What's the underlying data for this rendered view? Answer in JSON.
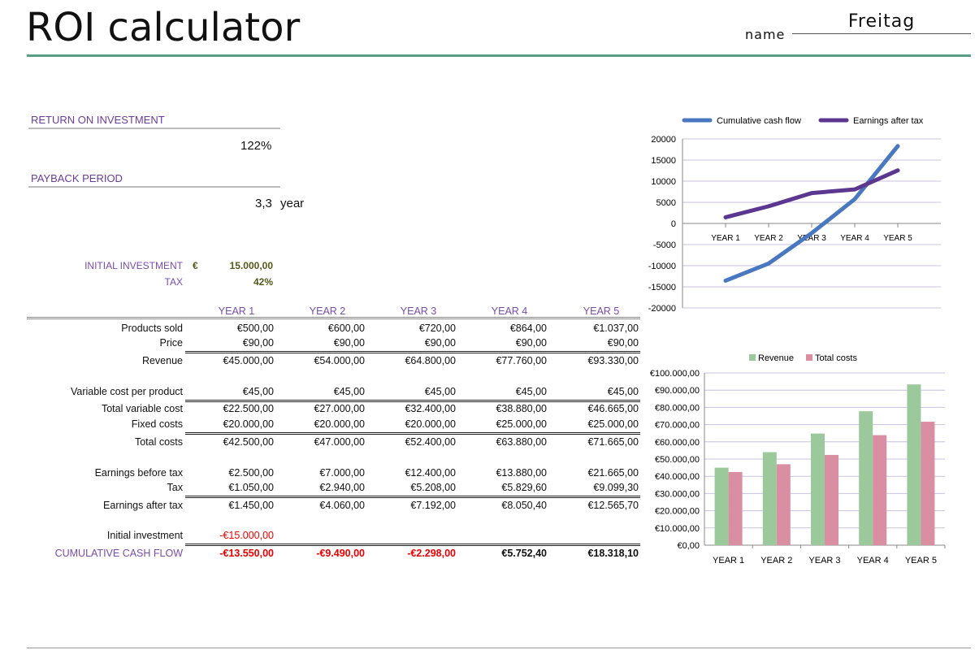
{
  "header": {
    "title": "ROI calculator",
    "name_label": "name",
    "name_value": "Freitag"
  },
  "summary": {
    "roi_label": "RETURN ON INVESTMENT",
    "roi_value": "122%",
    "payback_label": "PAYBACK PERIOD",
    "payback_value": "3,3",
    "payback_unit": "year"
  },
  "inputs": {
    "initial_investment_label": "INITIAL INVESTMENT",
    "currency": "€",
    "initial_investment_value": "15.000,00",
    "tax_label": "TAX",
    "tax_value": "42%"
  },
  "table": {
    "years": [
      "YEAR 1",
      "YEAR 2",
      "YEAR 3",
      "YEAR 4",
      "YEAR 5"
    ],
    "rows": [
      {
        "label": "Products sold",
        "values": [
          "€500,00",
          "€600,00",
          "€720,00",
          "€864,00",
          "€1.037,00"
        ]
      },
      {
        "label": "Price",
        "values": [
          "€90,00",
          "€90,00",
          "€90,00",
          "€90,00",
          "€90,00"
        ]
      },
      {
        "label": "Revenue",
        "values": [
          "€45.000,00",
          "€54.000,00",
          "€64.800,00",
          "€77.760,00",
          "€93.330,00"
        ]
      },
      {
        "label": "Variable cost per product",
        "values": [
          "€45,00",
          "€45,00",
          "€45,00",
          "€45,00",
          "€45,00"
        ]
      },
      {
        "label": "Total variable cost",
        "values": [
          "€22.500,00",
          "€27.000,00",
          "€32.400,00",
          "€38.880,00",
          "€46.665,00"
        ]
      },
      {
        "label": "Fixed costs",
        "values": [
          "€20.000,00",
          "€20.000,00",
          "€20.000,00",
          "€25.000,00",
          "€25.000,00"
        ]
      },
      {
        "label": "Total costs",
        "values": [
          "€42.500,00",
          "€47.000,00",
          "€52.400,00",
          "€63.880,00",
          "€71.665,00"
        ]
      },
      {
        "label": "Earnings before tax",
        "values": [
          "€2.500,00",
          "€7.000,00",
          "€12.400,00",
          "€13.880,00",
          "€21.665,00"
        ]
      },
      {
        "label": "Tax",
        "values": [
          "€1.050,00",
          "€2.940,00",
          "€5.208,00",
          "€5.829,60",
          "€9.099,30"
        ]
      },
      {
        "label": "Earnings after tax",
        "values": [
          "€1.450,00",
          "€4.060,00",
          "€7.192,00",
          "€8.050,40",
          "€12.565,70"
        ]
      },
      {
        "label": "Initial investment",
        "values": [
          "-€15.000,00",
          "",
          "",
          "",
          ""
        ]
      },
      {
        "label": "CUMULATIVE CASH FLOW",
        "values": [
          "-€13.550,00",
          "-€9.490,00",
          "-€2.298,00",
          "€5.752,40",
          "€18.318,10"
        ]
      }
    ]
  },
  "chart_data": [
    {
      "type": "line",
      "categories": [
        "YEAR 1",
        "YEAR 2",
        "YEAR 3",
        "YEAR 4",
        "YEAR 5"
      ],
      "series": [
        {
          "name": "Cumulative cash flow",
          "values": [
            -13550,
            -9490,
            -2298,
            5752.4,
            18318.1
          ],
          "color": "#4a78c0"
        },
        {
          "name": "Earnings after tax",
          "values": [
            1450,
            4060,
            7192,
            8050.4,
            12565.7
          ],
          "color": "#5c3790"
        }
      ],
      "ylim": [
        -20000,
        20000
      ],
      "yticks": [
        "20000",
        "15000",
        "10000",
        "5000",
        "0",
        "-5000",
        "-10000",
        "-15000",
        "-20000"
      ],
      "legend": "top",
      "grid": true
    },
    {
      "type": "bar",
      "categories": [
        "YEAR 1",
        "YEAR 2",
        "YEAR 3",
        "YEAR 4",
        "YEAR 5"
      ],
      "series": [
        {
          "name": "Revenue",
          "values": [
            45000,
            54000,
            64800,
            77760,
            93330
          ],
          "color": "#9bc99b"
        },
        {
          "name": "Total costs",
          "values": [
            42500,
            47000,
            52400,
            63880,
            71665
          ],
          "color": "#d98ea2"
        }
      ],
      "ylim": [
        0,
        100000
      ],
      "yticks": [
        "€100.000,00",
        "€90.000,00",
        "€80.000,00",
        "€70.000,00",
        "€60.000,00",
        "€50.000,00",
        "€40.000,00",
        "€30.000,00",
        "€20.000,00",
        "€10.000,00",
        "€0,00"
      ],
      "legend": "top",
      "grid": true
    }
  ]
}
